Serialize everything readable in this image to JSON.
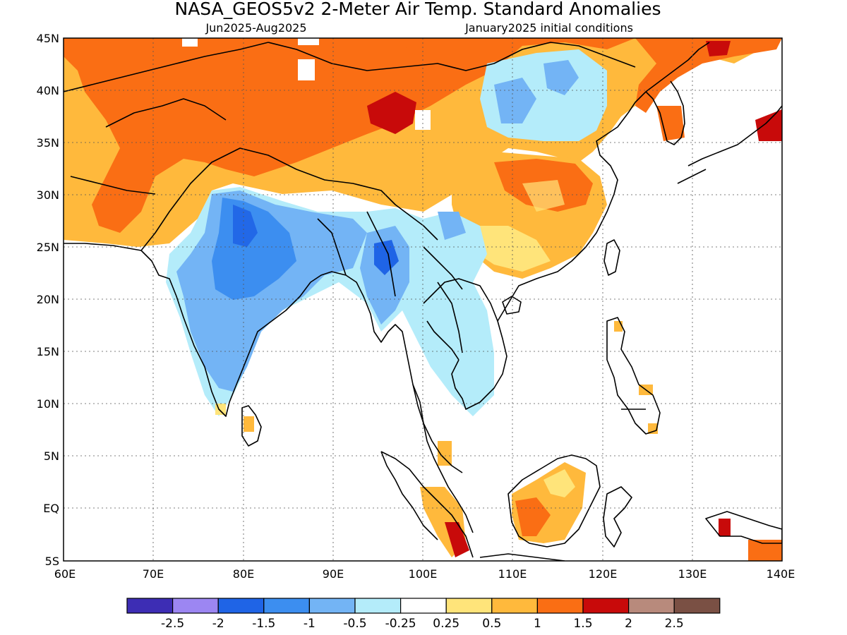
{
  "title": "NASA_GEOS5v2 2-Meter Air Temp. Standard Anomalies",
  "period": "Jun2025-Aug2025",
  "init": "January2025 initial conditions",
  "axes": {
    "lat_ticks": [
      "45N",
      "40N",
      "35N",
      "30N",
      "25N",
      "20N",
      "15N",
      "10N",
      "5N",
      "EQ",
      "5S"
    ],
    "lat_values": [
      45,
      40,
      35,
      30,
      25,
      20,
      15,
      10,
      5,
      0,
      -5
    ],
    "lon_ticks": [
      "60E",
      "70E",
      "80E",
      "90E",
      "100E",
      "110E",
      "120E",
      "130E",
      "140E"
    ],
    "lon_values": [
      60,
      70,
      80,
      90,
      100,
      110,
      120,
      130,
      140
    ],
    "lon_range": [
      60,
      140
    ],
    "lat_range": [
      -5,
      45
    ]
  },
  "colorbar": {
    "colors": [
      "#3d2db4",
      "#9c86f2",
      "#1f64e6",
      "#3c8ef0",
      "#73b4f5",
      "#b4ecfa",
      "#ffffff",
      "#ffe47a",
      "#ffb93c",
      "#fa6e14",
      "#c80a0a",
      "#b88a7c",
      "#7a5044"
    ],
    "labels": [
      "-2.5",
      "-2",
      "-1.5",
      "-1",
      "-0.5",
      "-0.25",
      "0.25",
      "0.5",
      "1",
      "1.5",
      "2",
      "2.5"
    ]
  },
  "legend_colors": {
    "strong_warm": "#fa6e14",
    "moderate_warm": "#ffb93c",
    "weak_warm": "#ffe47a",
    "very_warm": "#c80a0a",
    "weak_cool": "#b4ecfa",
    "moderate_cool": "#73b4f5",
    "strong_cool": "#3c8ef0",
    "very_cool": "#1f64e6"
  }
}
